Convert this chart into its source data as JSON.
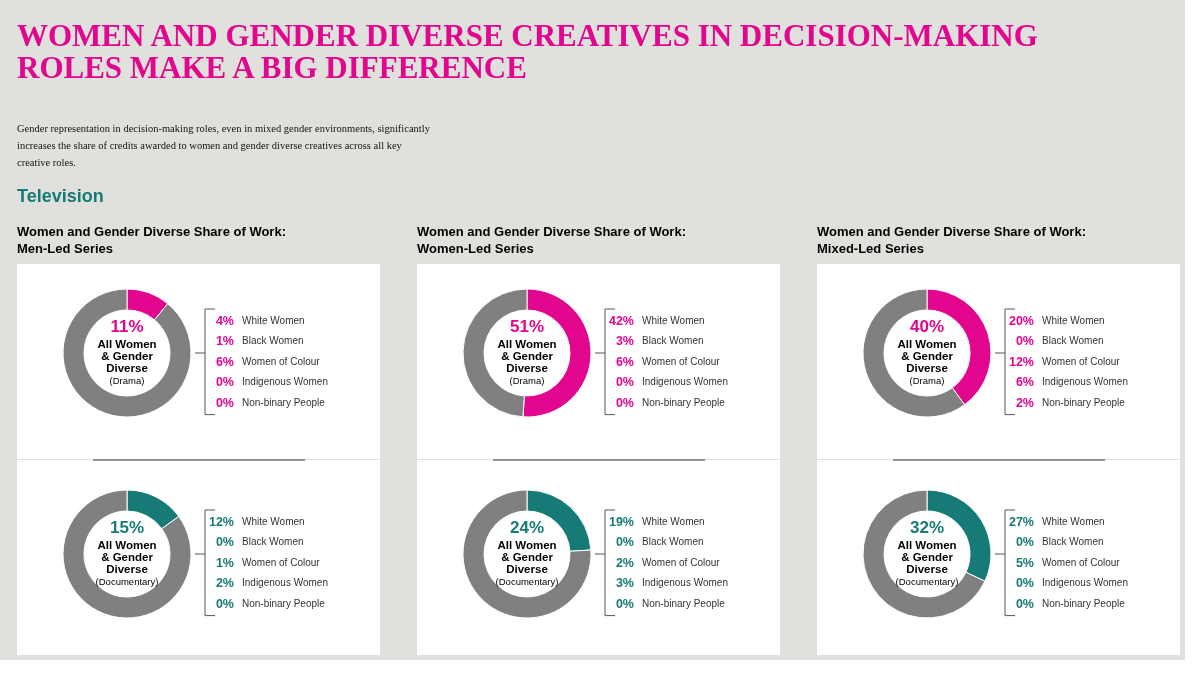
{
  "chart_data": [
    {
      "type": "other",
      "title": "WOMEN AND GENDER DIVERSE CREATIVES IN DECISION-MAKING ROLES MAKE A BIG DIFFERENCE",
      "subtitle": "Gender representation in decision-making roles, even in mixed gender environments, significantly increases the share of credits awarded to women and gender diverse creatives across all key creative roles.",
      "annotations": [
        "Television"
      ]
    },
    {
      "type": "donut",
      "title": "Women and Gender Diverse Share of Work: Men-Led Series",
      "subtitle": "(Drama)",
      "categories": [
        "All Women & Gender Diverse",
        null
      ],
      "values": [
        11,
        89
      ],
      "colors": [
        "#e2068f",
        "#808080"
      ],
      "value_labels": [
        "11%",
        null
      ],
      "annotations": [
        "4%",
        "White Women",
        "1%",
        "Black Women",
        "6%",
        "Women of Colour",
        "0%",
        "Indigenous Women",
        "0%",
        "Non-binary People"
      ]
    },
    {
      "type": "donut",
      "subtitle": "(Documentary)",
      "categories": [
        "All Women & Gender Diverse",
        null
      ],
      "values": [
        15,
        85
      ],
      "colors": [
        "#167a76",
        "#808080"
      ],
      "value_labels": [
        "15%",
        null
      ],
      "annotations": [
        "12%",
        "White Women",
        "0%",
        "Black Women",
        "1%",
        "Women of Colour",
        "2%",
        "Indigenous Women",
        "0%",
        "Non-binary People"
      ]
    },
    {
      "type": "donut",
      "title": "Women and Gender Diverse Share of Work: Women-Led Series",
      "subtitle": "(Drama)",
      "categories": [
        "All Women & Gender Diverse",
        null
      ],
      "values": [
        51,
        49
      ],
      "colors": [
        "#e2068f",
        "#808080"
      ],
      "value_labels": [
        "51%",
        null
      ],
      "annotations": [
        "42%",
        "White Women",
        "3%",
        "Black Women",
        "6%",
        "Women of Colour",
        "0%",
        "Indigenous Women",
        "0%",
        "Non-binary People"
      ]
    },
    {
      "type": "donut",
      "subtitle": "(Documentary)",
      "categories": [
        "All Women & Gender Diverse",
        null
      ],
      "values": [
        24,
        76
      ],
      "colors": [
        "#167a76",
        "#808080"
      ],
      "value_labels": [
        "24%",
        null
      ],
      "annotations": [
        "19%",
        "White Women",
        "0%",
        "Black Women",
        "2%",
        "Women of Colour",
        "3%",
        "Indigenous Women",
        "0%",
        "Non-binary People"
      ]
    },
    {
      "type": "donut",
      "title": "Women and Gender Diverse Share of Work: Mixed-Led Series",
      "subtitle": "(Drama)",
      "categories": [
        "All Women & Gender Diverse",
        null
      ],
      "values": [
        40,
        60
      ],
      "colors": [
        "#e2068f",
        "#808080"
      ],
      "value_labels": [
        "40%",
        null
      ],
      "annotations": [
        "20%",
        "White Women",
        "0%",
        "Black Women",
        "12%",
        "Women of Colour",
        "6%",
        "Indigenous Women",
        "2%",
        "Non-binary People"
      ]
    },
    {
      "type": "donut",
      "subtitle": "(Documentary)",
      "categories": [
        "All Women & Gender Diverse",
        null
      ],
      "values": [
        32,
        68
      ],
      "colors": [
        "#167a76",
        "#808080"
      ],
      "value_labels": [
        "32%",
        null
      ],
      "annotations": [
        "27%",
        "White Women",
        "0%",
        "Black Women",
        "5%",
        "Women of Colour",
        "0%",
        "Indigenous Women",
        "0%",
        "Non-binary People"
      ]
    }
  ]
}
